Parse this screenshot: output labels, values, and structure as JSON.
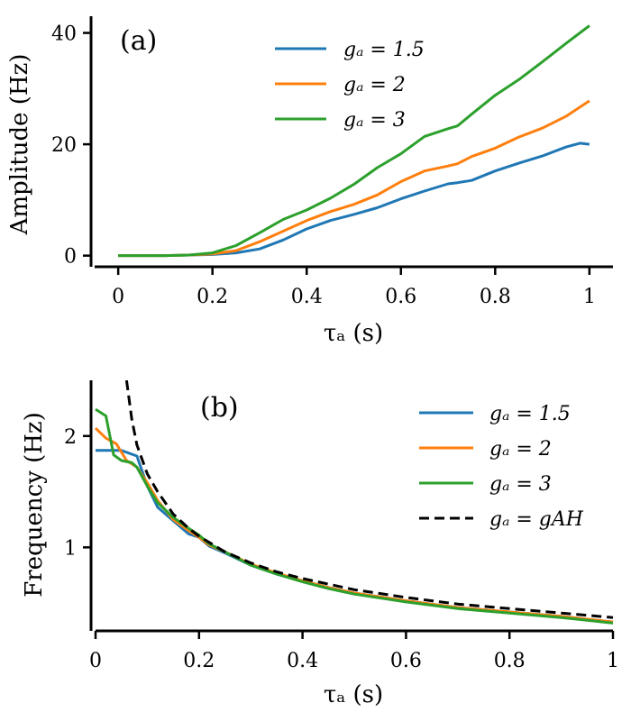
{
  "chart_data": [
    {
      "type": "line",
      "panel_label": "(a)",
      "xlabel": "τₐ (s)",
      "ylabel": "Amplitude (Hz)",
      "xlim": [
        -0.05,
        1.05
      ],
      "ylim": [
        -2,
        43
      ],
      "xticks": [
        0,
        0.2,
        0.4,
        0.6,
        0.8,
        1
      ],
      "xtick_labels": [
        "0",
        "0.2",
        "0.4",
        "0.6",
        "0.8",
        "1"
      ],
      "yticks": [
        0,
        20,
        40
      ],
      "ytick_labels": [
        "0",
        "20",
        "40"
      ],
      "legend_position": "top-right",
      "series": [
        {
          "name": "gₐ = 1.5",
          "color": "#1f77b4",
          "x": [
            0,
            0.1,
            0.15,
            0.2,
            0.25,
            0.3,
            0.35,
            0.4,
            0.45,
            0.5,
            0.55,
            0.6,
            0.65,
            0.7,
            0.72,
            0.75,
            0.8,
            0.85,
            0.9,
            0.95,
            0.98,
            1.0
          ],
          "y": [
            0,
            0,
            0.1,
            0.2,
            0.5,
            1.2,
            2.8,
            4.8,
            6.3,
            7.4,
            8.6,
            10.2,
            11.6,
            12.9,
            13.1,
            13.5,
            15.2,
            16.6,
            17.9,
            19.5,
            20.2,
            20.0
          ]
        },
        {
          "name": "gₐ = 2",
          "color": "#ff7f0e",
          "x": [
            0,
            0.1,
            0.15,
            0.2,
            0.25,
            0.3,
            0.35,
            0.4,
            0.45,
            0.5,
            0.55,
            0.6,
            0.65,
            0.7,
            0.72,
            0.75,
            0.8,
            0.85,
            0.9,
            0.95,
            1.0
          ],
          "y": [
            0,
            0,
            0.1,
            0.3,
            0.9,
            2.5,
            4.4,
            6.3,
            7.9,
            9.2,
            10.9,
            13.3,
            15.2,
            16.1,
            16.5,
            17.8,
            19.3,
            21.3,
            22.9,
            25.0,
            27.8
          ]
        },
        {
          "name": "gₐ = 3",
          "color": "#2ca02c",
          "x": [
            0,
            0.1,
            0.15,
            0.2,
            0.25,
            0.3,
            0.35,
            0.4,
            0.45,
            0.5,
            0.55,
            0.6,
            0.65,
            0.7,
            0.72,
            0.75,
            0.8,
            0.85,
            0.9,
            0.95,
            1.0
          ],
          "y": [
            0,
            0,
            0.1,
            0.5,
            1.8,
            4.1,
            6.5,
            8.2,
            10.3,
            12.8,
            15.8,
            18.3,
            21.4,
            22.8,
            23.3,
            25.4,
            28.8,
            31.6,
            34.8,
            38.1,
            41.3
          ]
        }
      ]
    },
    {
      "type": "line",
      "panel_label": "(b)",
      "xlabel": "τₐ (s)",
      "ylabel": "Frequency (Hz)",
      "xlim": [
        0,
        1
      ],
      "ylim": [
        0.25,
        2.5
      ],
      "xticks": [
        0,
        0.2,
        0.4,
        0.6,
        0.8,
        1
      ],
      "xtick_labels": [
        "0",
        "0.2",
        "0.4",
        "0.6",
        "0.8",
        "1"
      ],
      "yticks": [
        1,
        2
      ],
      "ytick_labels": [
        "1",
        "2"
      ],
      "legend_position": "top-right",
      "series": [
        {
          "name": "gₐ = 1.5",
          "color": "#1f77b4",
          "dash": "solid",
          "x": [
            0,
            0.05,
            0.08,
            0.1,
            0.12,
            0.15,
            0.18,
            0.2,
            0.22,
            0.25,
            0.3,
            0.35,
            0.4,
            0.45,
            0.5,
            0.6,
            0.7,
            0.8,
            0.9,
            1.0
          ],
          "y": [
            1.87,
            1.87,
            1.82,
            1.55,
            1.36,
            1.24,
            1.12,
            1.09,
            1.01,
            0.95,
            0.84,
            0.76,
            0.7,
            0.64,
            0.59,
            0.52,
            0.46,
            0.42,
            0.38,
            0.33
          ]
        },
        {
          "name": "gₐ = 2",
          "color": "#ff7f0e",
          "dash": "solid",
          "x": [
            0,
            0.02,
            0.04,
            0.06,
            0.08,
            0.1,
            0.12,
            0.15,
            0.18,
            0.2,
            0.22,
            0.25,
            0.3,
            0.35,
            0.4,
            0.45,
            0.5,
            0.6,
            0.7,
            0.8,
            0.9,
            1.0
          ],
          "y": [
            2.07,
            1.98,
            1.93,
            1.78,
            1.72,
            1.58,
            1.42,
            1.25,
            1.15,
            1.09,
            1.02,
            0.96,
            0.85,
            0.77,
            0.7,
            0.64,
            0.59,
            0.52,
            0.46,
            0.42,
            0.38,
            0.33
          ]
        },
        {
          "name": "gₐ = 3",
          "color": "#2ca02c",
          "dash": "solid",
          "x": [
            0,
            0.02,
            0.035,
            0.05,
            0.07,
            0.08,
            0.1,
            0.12,
            0.15,
            0.18,
            0.2,
            0.22,
            0.25,
            0.3,
            0.35,
            0.4,
            0.45,
            0.5,
            0.6,
            0.7,
            0.8,
            0.9,
            1.0
          ],
          "y": [
            2.24,
            2.18,
            1.83,
            1.78,
            1.76,
            1.72,
            1.55,
            1.4,
            1.27,
            1.17,
            1.11,
            1.03,
            0.96,
            0.84,
            0.76,
            0.69,
            0.63,
            0.58,
            0.51,
            0.45,
            0.41,
            0.37,
            0.32
          ]
        },
        {
          "name": "gₐ = gAH",
          "color": "#000000",
          "dash": "dashed",
          "x": [
            0.06,
            0.07,
            0.08,
            0.1,
            0.12,
            0.15,
            0.18,
            0.2,
            0.25,
            0.3,
            0.35,
            0.4,
            0.45,
            0.5,
            0.6,
            0.7,
            0.8,
            0.9,
            1.0
          ],
          "y": [
            2.5,
            2.15,
            1.92,
            1.66,
            1.5,
            1.3,
            1.17,
            1.1,
            0.96,
            0.86,
            0.78,
            0.72,
            0.67,
            0.62,
            0.55,
            0.49,
            0.45,
            0.41,
            0.37
          ]
        }
      ]
    }
  ]
}
